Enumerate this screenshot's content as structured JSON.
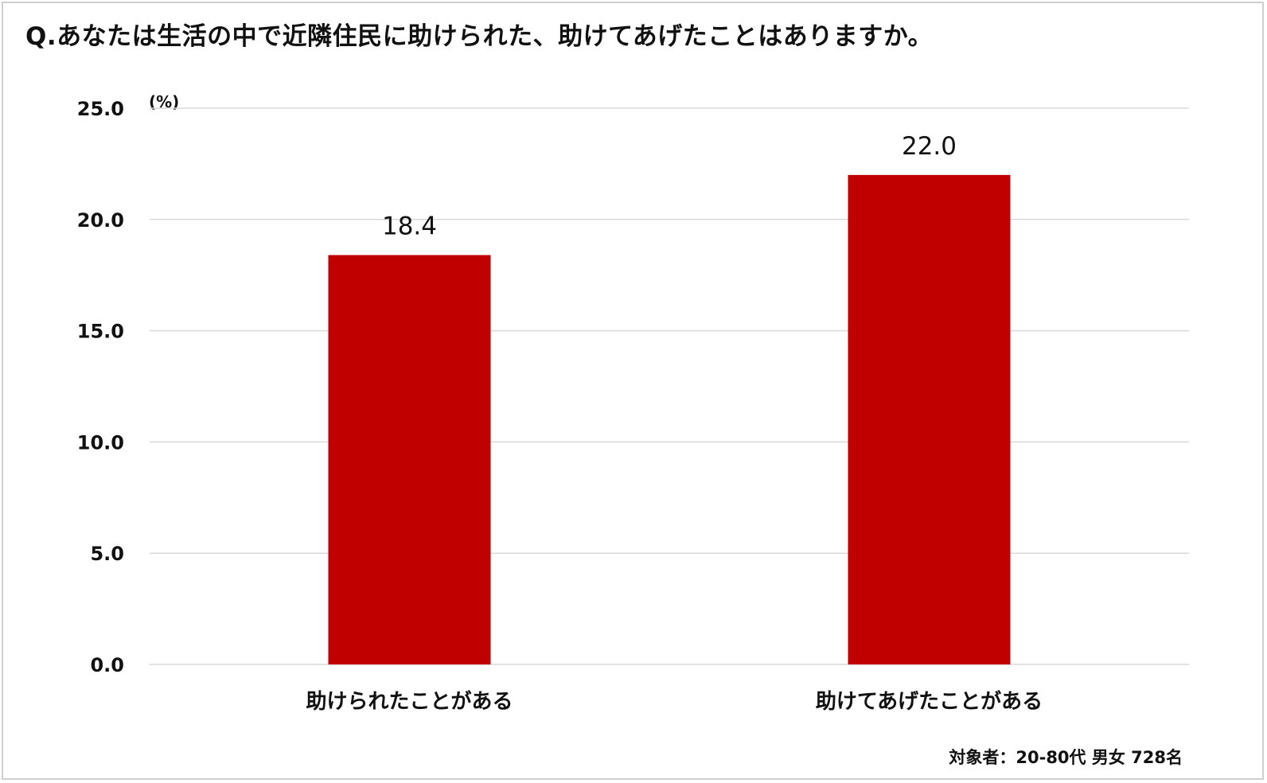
{
  "chart_data": {
    "type": "bar",
    "title": "Q.あなたは生活の中で近隣住民に助けられた、助けてあげたことはありますか。",
    "ylabel": "(%)",
    "xlabel": "",
    "categories": [
      "助けられたことがある",
      "助けてあげたことがある"
    ],
    "values": [
      18.4,
      22.0
    ],
    "data_labels": [
      "18.4",
      "22.0"
    ],
    "ylim": [
      0,
      25
    ],
    "yticks": [
      0,
      5,
      10,
      15,
      20,
      25
    ],
    "ytick_labels": [
      "0.0",
      "5.0",
      "10.0",
      "15.0",
      "20.0",
      "25.0"
    ],
    "grid": true,
    "legend": "none",
    "bar_color": "#C00000",
    "footnote": "対象者：20-80代 男女 728名"
  }
}
